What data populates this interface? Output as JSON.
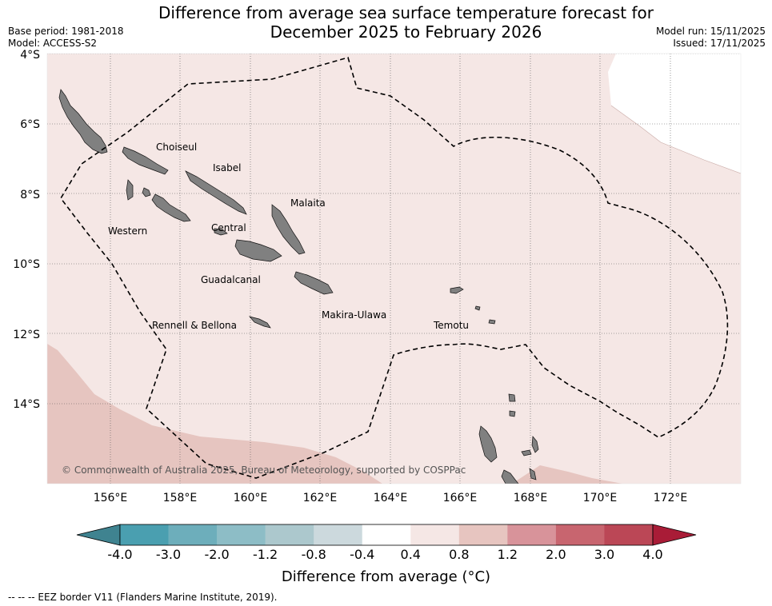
{
  "title_line1": "Difference from average sea surface temperature forecast for",
  "title_line2": "December 2025 to February 2026",
  "base_period": "Base period: 1981-2018",
  "model": "Model: ACCESS-S2",
  "model_run": "Model run: 15/11/2025",
  "issued": "Issued: 17/11/2025",
  "copyright": "© Commonwealth of Australia 2025, Bureau of Meteorology, supported by COSPPac",
  "lat_ticks": [
    "4°S",
    "6°S",
    "8°S",
    "10°S",
    "12°S",
    "14°S"
  ],
  "lon_ticks": [
    "156°E",
    "158°E",
    "160°E",
    "162°E",
    "164°E",
    "166°E",
    "168°E",
    "170°E",
    "172°E"
  ],
  "provinces": [
    "Choiseul",
    "Isabel",
    "Malaita",
    "Western",
    "Central",
    "Guadalcanal",
    "Makira-Ulawa",
    "Rennell & Bellona",
    "Temotu"
  ],
  "colorbar": {
    "title": "Difference from average (°C)",
    "labels": [
      "-4.0",
      "-3.0",
      "-2.0",
      "-1.2",
      "-0.8",
      "-0.4",
      "0.4",
      "0.8",
      "1.2",
      "2.0",
      "3.0",
      "4.0"
    ],
    "colors": [
      "#4a9fb0",
      "#6daebb",
      "#8dbdc6",
      "#acc8cd",
      "#ccd9dd",
      "#ffffff",
      "#f5e7e5",
      "#e7c5c0",
      "#d8939a",
      "#c8656f",
      "#bb4756"
    ],
    "low_extend_color": "#3f8390",
    "high_extend_color": "#a91c37"
  },
  "colors": {
    "map_background": "#f5e7e5",
    "warm_region": "#e6c5c0",
    "land": "#808080"
  },
  "footnote": "-- -- -- EEZ border V11 (Flanders Marine Institute, 2019)."
}
